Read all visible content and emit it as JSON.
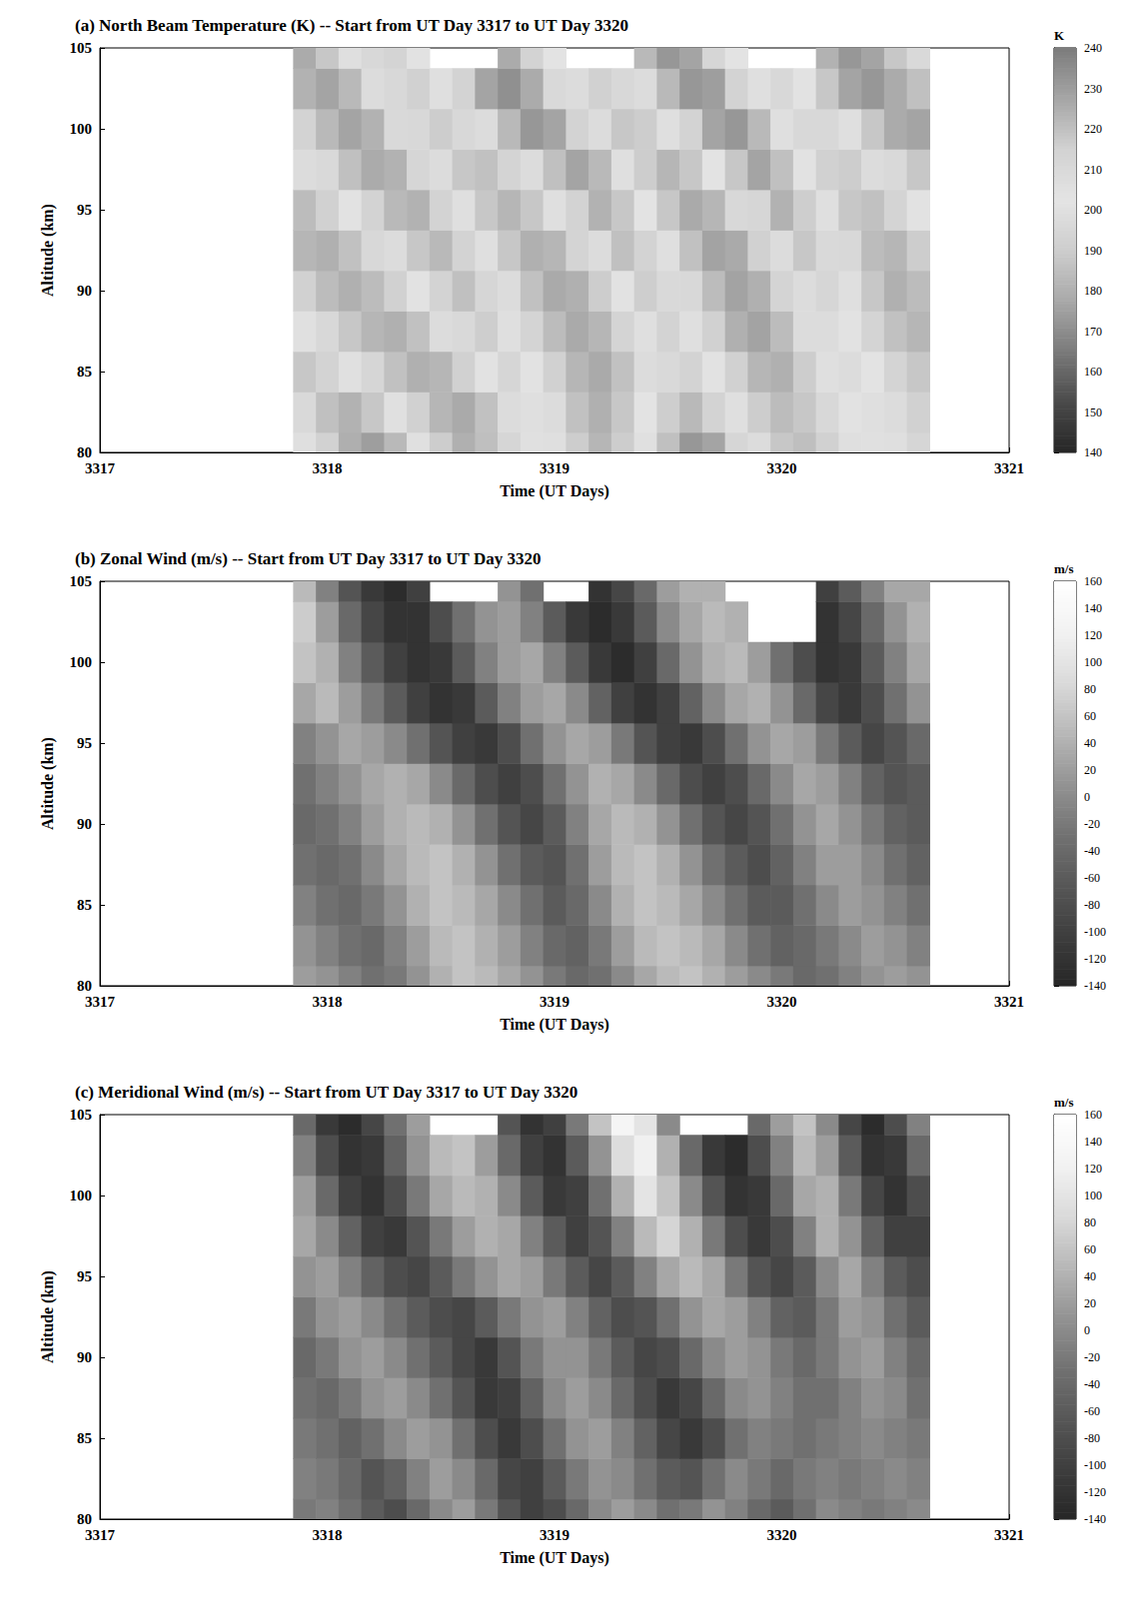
{
  "chart_data": [
    {
      "type": "heatmap",
      "title": "(a) North Beam Temperature (K) -- Start from UT Day 3317 to UT Day 3320",
      "x_label": "Time (UT Days)",
      "y_label": "Altitude (km)",
      "x": [
        3317.9,
        3318,
        3318.1,
        3318.2,
        3318.3,
        3318.4,
        3318.5,
        3318.6,
        3318.7,
        3318.8,
        3318.9,
        3319,
        3319.1,
        3319.2,
        3319.3,
        3319.4,
        3319.5,
        3319.6,
        3319.7,
        3319.8,
        3319.9,
        3320,
        3320.1,
        3320.2,
        3320.3,
        3320.4,
        3320.5,
        3320.6
      ],
      "y": [
        80,
        82.5,
        85,
        87.5,
        90,
        92.5,
        95,
        97.5,
        100,
        102.5,
        105
      ],
      "z": [
        [
          200,
          215,
          225,
          230,
          222,
          205,
          190,
          180,
          185,
          195,
          205,
          200,
          190,
          182,
          190,
          205,
          220,
          232,
          228,
          212,
          198,
          188,
          185,
          192,
          200,
          205,
          200,
          195
        ],
        [
          210,
          220,
          224,
          218,
          205,
          192,
          182,
          178,
          186,
          198,
          206,
          198,
          186,
          180,
          188,
          202,
          216,
          222,
          214,
          200,
          190,
          184,
          188,
          196,
          204,
          206,
          198,
          192
        ],
        [
          218,
          214,
          205,
          195,
          186,
          180,
          182,
          192,
          204,
          212,
          204,
          192,
          182,
          178,
          186,
          198,
          210,
          214,
          204,
          192,
          182,
          180,
          190,
          200,
          208,
          202,
          194,
          188
        ],
        [
          205,
          196,
          188,
          182,
          180,
          186,
          198,
          210,
          216,
          206,
          194,
          184,
          178,
          182,
          194,
          206,
          214,
          206,
          192,
          180,
          176,
          184,
          198,
          208,
          204,
          194,
          186,
          182
        ],
        [
          192,
          184,
          180,
          184,
          192,
          204,
          214,
          220,
          212,
          198,
          186,
          178,
          180,
          190,
          204,
          216,
          210,
          196,
          184,
          176,
          180,
          194,
          208,
          212,
          200,
          188,
          180,
          184
        ],
        [
          182,
          180,
          186,
          196,
          208,
          218,
          222,
          214,
          200,
          188,
          180,
          182,
          194,
          208,
          220,
          214,
          200,
          186,
          176,
          178,
          192,
          208,
          218,
          210,
          196,
          184,
          182,
          190
        ],
        [
          184,
          192,
          204,
          214,
          222,
          224,
          214,
          200,
          188,
          182,
          188,
          200,
          214,
          224,
          218,
          202,
          188,
          178,
          182,
          196,
          212,
          224,
          216,
          200,
          188,
          186,
          194,
          204
        ],
        [
          198,
          210,
          220,
          226,
          224,
          212,
          198,
          188,
          186,
          194,
          208,
          220,
          228,
          222,
          206,
          190,
          182,
          188,
          202,
          218,
          228,
          220,
          204,
          192,
          190,
          198,
          210,
          218
        ],
        [
          214,
          222,
          228,
          224,
          210,
          196,
          190,
          196,
          208,
          222,
          232,
          228,
          214,
          198,
          188,
          190,
          200,
          214,
          228,
          232,
          222,
          206,
          196,
          196,
          206,
          218,
          226,
          228
        ],
        [
          224,
          228,
          222,
          208,
          196,
          192,
          200,
          214,
          228,
          234,
          226,
          210,
          198,
          192,
          196,
          208,
          222,
          232,
          230,
          214,
          200,
          196,
          204,
          218,
          228,
          232,
          226,
          220
        ],
        [
          226,
          218,
          206,
          196,
          194,
          204,
          null,
          null,
          null,
          226,
          214,
          202,
          null,
          null,
          null,
          222,
          232,
          228,
          212,
          202,
          null,
          null,
          null,
          224,
          232,
          228,
          218,
          210
        ]
      ],
      "xlim": [
        3317,
        3321
      ],
      "xticks": [
        3317,
        3318,
        3319,
        3320,
        3321
      ],
      "ylim": [
        80,
        105
      ],
      "yticks": [
        80,
        85,
        90,
        95,
        100,
        105
      ],
      "colorbar": {
        "label": "K",
        "range": [
          140,
          240
        ],
        "ticks": [
          140,
          150,
          160,
          170,
          180,
          190,
          200,
          210,
          220,
          230,
          240
        ]
      }
    },
    {
      "type": "heatmap",
      "title": "(b) Zonal Wind (m/s) -- Start from UT Day 3317 to UT Day 3320",
      "x_label": "Time (UT Days)",
      "y_label": "Altitude (km)",
      "x": [
        3317.9,
        3318,
        3318.1,
        3318.2,
        3318.3,
        3318.4,
        3318.5,
        3318.6,
        3318.7,
        3318.8,
        3318.9,
        3319,
        3319.1,
        3319.2,
        3319.3,
        3319.4,
        3319.5,
        3319.6,
        3319.7,
        3319.8,
        3319.9,
        3320,
        3320.1,
        3320.2,
        3320.3,
        3320.4,
        3320.5,
        3320.6
      ],
      "y": [
        80,
        82.5,
        85,
        87.5,
        90,
        92.5,
        95,
        97.5,
        100,
        102.5,
        105
      ],
      "z": [
        [
          20,
          10,
          -10,
          -30,
          -20,
          10,
          40,
          60,
          50,
          30,
          10,
          -20,
          -40,
          -30,
          0,
          30,
          50,
          60,
          40,
          20,
          0,
          -20,
          -40,
          -30,
          -10,
          10,
          20,
          10
        ],
        [
          10,
          -10,
          -30,
          -40,
          -10,
          20,
          50,
          60,
          40,
          20,
          -10,
          -40,
          -50,
          -20,
          20,
          50,
          60,
          50,
          30,
          0,
          -30,
          -50,
          -40,
          -20,
          0,
          20,
          10,
          -10
        ],
        [
          -10,
          -30,
          -40,
          -20,
          10,
          40,
          60,
          50,
          30,
          0,
          -30,
          -60,
          -40,
          0,
          40,
          60,
          50,
          30,
          0,
          -30,
          -60,
          -60,
          -30,
          0,
          20,
          10,
          -10,
          -30
        ],
        [
          -30,
          -40,
          -30,
          0,
          30,
          50,
          60,
          40,
          10,
          -30,
          -60,
          -70,
          -30,
          20,
          50,
          60,
          40,
          10,
          -30,
          -60,
          -80,
          -50,
          -10,
          20,
          20,
          0,
          -30,
          -50
        ],
        [
          -40,
          -30,
          -10,
          20,
          40,
          50,
          40,
          10,
          -30,
          -70,
          -90,
          -60,
          -10,
          30,
          50,
          40,
          10,
          -30,
          -70,
          -90,
          -70,
          -30,
          10,
          30,
          10,
          -20,
          -50,
          -60
        ],
        [
          -30,
          -10,
          10,
          30,
          40,
          30,
          0,
          -40,
          -80,
          -100,
          -80,
          -30,
          10,
          40,
          30,
          0,
          -40,
          -80,
          -100,
          -80,
          -40,
          0,
          30,
          20,
          -10,
          -50,
          -70,
          -60
        ],
        [
          -10,
          10,
          30,
          20,
          0,
          -30,
          -70,
          -100,
          -110,
          -80,
          -30,
          10,
          30,
          20,
          -20,
          -70,
          -100,
          -110,
          -80,
          -30,
          10,
          30,
          20,
          -20,
          -60,
          -90,
          -70,
          -40
        ],
        [
          30,
          50,
          20,
          -20,
          -60,
          -100,
          -120,
          -110,
          -60,
          -10,
          20,
          30,
          0,
          -50,
          -100,
          -120,
          -100,
          -50,
          0,
          30,
          40,
          10,
          -40,
          -90,
          -110,
          -80,
          -30,
          10
        ],
        [
          60,
          40,
          -10,
          -60,
          -100,
          -120,
          -110,
          -60,
          -10,
          20,
          30,
          -10,
          -60,
          -110,
          -130,
          -100,
          -40,
          10,
          40,
          50,
          20,
          -30,
          -80,
          -120,
          -110,
          -60,
          -10,
          30
        ],
        [
          70,
          20,
          -40,
          -90,
          -120,
          -120,
          -80,
          -30,
          10,
          20,
          -10,
          -60,
          -110,
          -130,
          -110,
          -60,
          0,
          30,
          50,
          40,
          null,
          null,
          null,
          -120,
          -90,
          -40,
          10,
          40
        ],
        [
          50,
          -10,
          -70,
          -110,
          -130,
          -100,
          null,
          null,
          null,
          10,
          -30,
          null,
          null,
          -120,
          -90,
          -40,
          20,
          40,
          40,
          null,
          null,
          null,
          null,
          -100,
          -60,
          -10,
          30,
          30
        ]
      ],
      "xlim": [
        3317,
        3321
      ],
      "xticks": [
        3317,
        3318,
        3319,
        3320,
        3321
      ],
      "ylim": [
        80,
        105
      ],
      "yticks": [
        80,
        85,
        90,
        95,
        100,
        105
      ],
      "colorbar": {
        "label": "m/s",
        "range": [
          -140,
          160
        ],
        "ticks": [
          -140,
          -120,
          -100,
          -80,
          -60,
          -40,
          -20,
          0,
          20,
          40,
          60,
          80,
          100,
          120,
          140,
          160
        ]
      }
    },
    {
      "type": "heatmap",
      "title": "(c) Meridional Wind (m/s) -- Start from UT Day 3317 to UT Day 3320",
      "x_label": "Time (UT Days)",
      "y_label": "Altitude (km)",
      "x": [
        3317.9,
        3318,
        3318.1,
        3318.2,
        3318.3,
        3318.4,
        3318.5,
        3318.6,
        3318.7,
        3318.8,
        3318.9,
        3319,
        3319.1,
        3319.2,
        3319.3,
        3319.4,
        3319.5,
        3319.6,
        3319.7,
        3319.8,
        3319.9,
        3320,
        3320.1,
        3320.2,
        3320.3,
        3320.4,
        3320.5,
        3320.6
      ],
      "y": [
        80,
        82.5,
        85,
        87.5,
        90,
        92.5,
        95,
        97.5,
        100,
        102.5,
        105
      ],
      "z": [
        [
          -20,
          -10,
          -30,
          -60,
          -80,
          -40,
          0,
          20,
          -20,
          -70,
          -100,
          -80,
          -40,
          0,
          20,
          0,
          -30,
          -20,
          10,
          -10,
          -40,
          -60,
          -30,
          0,
          -10,
          -20,
          -10,
          0
        ],
        [
          -10,
          -20,
          -40,
          -70,
          -50,
          -10,
          20,
          0,
          -40,
          -90,
          -100,
          -60,
          -20,
          10,
          0,
          -30,
          -60,
          -70,
          -30,
          0,
          -20,
          -40,
          -20,
          -10,
          -20,
          -10,
          0,
          -10
        ],
        [
          -20,
          -30,
          -50,
          -30,
          0,
          20,
          10,
          -30,
          -80,
          -110,
          -80,
          -30,
          10,
          20,
          -10,
          -50,
          -90,
          -110,
          -80,
          -30,
          -10,
          -20,
          -30,
          -20,
          -10,
          0,
          -10,
          -20
        ],
        [
          -30,
          -40,
          -20,
          10,
          20,
          0,
          -30,
          -70,
          -110,
          -100,
          -50,
          0,
          20,
          0,
          -40,
          -80,
          -110,
          -90,
          -40,
          0,
          10,
          -10,
          -30,
          -30,
          -10,
          10,
          0,
          -30
        ],
        [
          -40,
          -20,
          10,
          20,
          0,
          -30,
          -60,
          -90,
          -110,
          -70,
          -20,
          10,
          10,
          -20,
          -60,
          -90,
          -80,
          -40,
          0,
          20,
          10,
          -20,
          -40,
          -20,
          10,
          20,
          -10,
          -40
        ],
        [
          -20,
          10,
          20,
          0,
          -30,
          -60,
          -80,
          -90,
          -60,
          -20,
          10,
          20,
          -10,
          -50,
          -80,
          -70,
          -30,
          10,
          30,
          20,
          -10,
          -50,
          -60,
          -20,
          20,
          10,
          -30,
          -60
        ],
        [
          10,
          20,
          -10,
          -50,
          -80,
          -90,
          -60,
          -20,
          10,
          30,
          20,
          -20,
          -60,
          -90,
          -60,
          -10,
          30,
          50,
          30,
          -20,
          -70,
          -90,
          -60,
          0,
          30,
          -10,
          -60,
          -80
        ],
        [
          30,
          0,
          -50,
          -100,
          -110,
          -70,
          -20,
          20,
          40,
          30,
          -10,
          -60,
          -100,
          -70,
          -10,
          50,
          80,
          40,
          -20,
          -80,
          -110,
          -80,
          -10,
          40,
          10,
          -50,
          -100,
          -100
        ],
        [
          20,
          -40,
          -100,
          -120,
          -80,
          -20,
          30,
          50,
          40,
          0,
          -60,
          -110,
          -100,
          -30,
          40,
          100,
          60,
          0,
          -70,
          -120,
          -110,
          -40,
          30,
          40,
          -20,
          -90,
          -120,
          -80
        ],
        [
          -10,
          -80,
          -120,
          -110,
          -50,
          10,
          50,
          60,
          20,
          -40,
          -100,
          -120,
          -60,
          10,
          90,
          120,
          40,
          -40,
          -110,
          -130,
          -80,
          -10,
          50,
          20,
          -60,
          -120,
          -110,
          -40
        ],
        [
          -40,
          -110,
          -130,
          -90,
          -30,
          20,
          null,
          null,
          null,
          -70,
          -120,
          -100,
          -20,
          60,
          130,
          100,
          0,
          null,
          null,
          null,
          -40,
          20,
          60,
          0,
          -90,
          -130,
          -80,
          -10
        ]
      ],
      "xlim": [
        3317,
        3321
      ],
      "xticks": [
        3317,
        3318,
        3319,
        3320,
        3321
      ],
      "ylim": [
        80,
        105
      ],
      "yticks": [
        80,
        85,
        90,
        95,
        100,
        105
      ],
      "colorbar": {
        "label": "m/s",
        "range": [
          -140,
          160
        ],
        "ticks": [
          -140,
          -120,
          -100,
          -80,
          -60,
          -40,
          -20,
          0,
          20,
          40,
          60,
          80,
          100,
          120,
          140,
          160
        ]
      }
    }
  ]
}
